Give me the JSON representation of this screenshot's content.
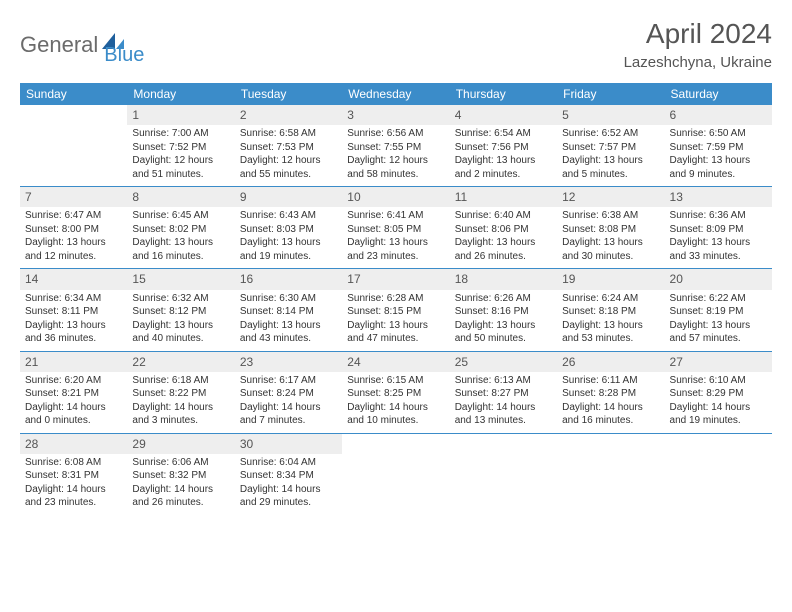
{
  "logo": {
    "text1": "General",
    "text2": "Blue"
  },
  "title": "April 2024",
  "location": "Lazeshchyna, Ukraine",
  "colors": {
    "header_bg": "#3b8cc9",
    "header_text": "#ffffff",
    "daynum_bg": "#eeeeee",
    "border": "#3b8cc9",
    "text": "#333333",
    "logo_gray": "#6b6b6b",
    "logo_blue": "#3b8cc9"
  },
  "day_headers": [
    "Sunday",
    "Monday",
    "Tuesday",
    "Wednesday",
    "Thursday",
    "Friday",
    "Saturday"
  ],
  "weeks": [
    [
      {
        "blank": true
      },
      {
        "n": "1",
        "sr": "7:00 AM",
        "ss": "7:52 PM",
        "dl": "12 hours and 51 minutes."
      },
      {
        "n": "2",
        "sr": "6:58 AM",
        "ss": "7:53 PM",
        "dl": "12 hours and 55 minutes."
      },
      {
        "n": "3",
        "sr": "6:56 AM",
        "ss": "7:55 PM",
        "dl": "12 hours and 58 minutes."
      },
      {
        "n": "4",
        "sr": "6:54 AM",
        "ss": "7:56 PM",
        "dl": "13 hours and 2 minutes."
      },
      {
        "n": "5",
        "sr": "6:52 AM",
        "ss": "7:57 PM",
        "dl": "13 hours and 5 minutes."
      },
      {
        "n": "6",
        "sr": "6:50 AM",
        "ss": "7:59 PM",
        "dl": "13 hours and 9 minutes."
      }
    ],
    [
      {
        "n": "7",
        "sr": "6:47 AM",
        "ss": "8:00 PM",
        "dl": "13 hours and 12 minutes."
      },
      {
        "n": "8",
        "sr": "6:45 AM",
        "ss": "8:02 PM",
        "dl": "13 hours and 16 minutes."
      },
      {
        "n": "9",
        "sr": "6:43 AM",
        "ss": "8:03 PM",
        "dl": "13 hours and 19 minutes."
      },
      {
        "n": "10",
        "sr": "6:41 AM",
        "ss": "8:05 PM",
        "dl": "13 hours and 23 minutes."
      },
      {
        "n": "11",
        "sr": "6:40 AM",
        "ss": "8:06 PM",
        "dl": "13 hours and 26 minutes."
      },
      {
        "n": "12",
        "sr": "6:38 AM",
        "ss": "8:08 PM",
        "dl": "13 hours and 30 minutes."
      },
      {
        "n": "13",
        "sr": "6:36 AM",
        "ss": "8:09 PM",
        "dl": "13 hours and 33 minutes."
      }
    ],
    [
      {
        "n": "14",
        "sr": "6:34 AM",
        "ss": "8:11 PM",
        "dl": "13 hours and 36 minutes."
      },
      {
        "n": "15",
        "sr": "6:32 AM",
        "ss": "8:12 PM",
        "dl": "13 hours and 40 minutes."
      },
      {
        "n": "16",
        "sr": "6:30 AM",
        "ss": "8:14 PM",
        "dl": "13 hours and 43 minutes."
      },
      {
        "n": "17",
        "sr": "6:28 AM",
        "ss": "8:15 PM",
        "dl": "13 hours and 47 minutes."
      },
      {
        "n": "18",
        "sr": "6:26 AM",
        "ss": "8:16 PM",
        "dl": "13 hours and 50 minutes."
      },
      {
        "n": "19",
        "sr": "6:24 AM",
        "ss": "8:18 PM",
        "dl": "13 hours and 53 minutes."
      },
      {
        "n": "20",
        "sr": "6:22 AM",
        "ss": "8:19 PM",
        "dl": "13 hours and 57 minutes."
      }
    ],
    [
      {
        "n": "21",
        "sr": "6:20 AM",
        "ss": "8:21 PM",
        "dl": "14 hours and 0 minutes."
      },
      {
        "n": "22",
        "sr": "6:18 AM",
        "ss": "8:22 PM",
        "dl": "14 hours and 3 minutes."
      },
      {
        "n": "23",
        "sr": "6:17 AM",
        "ss": "8:24 PM",
        "dl": "14 hours and 7 minutes."
      },
      {
        "n": "24",
        "sr": "6:15 AM",
        "ss": "8:25 PM",
        "dl": "14 hours and 10 minutes."
      },
      {
        "n": "25",
        "sr": "6:13 AM",
        "ss": "8:27 PM",
        "dl": "14 hours and 13 minutes."
      },
      {
        "n": "26",
        "sr": "6:11 AM",
        "ss": "8:28 PM",
        "dl": "14 hours and 16 minutes."
      },
      {
        "n": "27",
        "sr": "6:10 AM",
        "ss": "8:29 PM",
        "dl": "14 hours and 19 minutes."
      }
    ],
    [
      {
        "n": "28",
        "sr": "6:08 AM",
        "ss": "8:31 PM",
        "dl": "14 hours and 23 minutes."
      },
      {
        "n": "29",
        "sr": "6:06 AM",
        "ss": "8:32 PM",
        "dl": "14 hours and 26 minutes."
      },
      {
        "n": "30",
        "sr": "6:04 AM",
        "ss": "8:34 PM",
        "dl": "14 hours and 29 minutes."
      },
      {
        "blank": true
      },
      {
        "blank": true
      },
      {
        "blank": true
      },
      {
        "blank": true
      }
    ]
  ],
  "labels": {
    "sunrise": "Sunrise:",
    "sunset": "Sunset:",
    "daylight": "Daylight:"
  }
}
